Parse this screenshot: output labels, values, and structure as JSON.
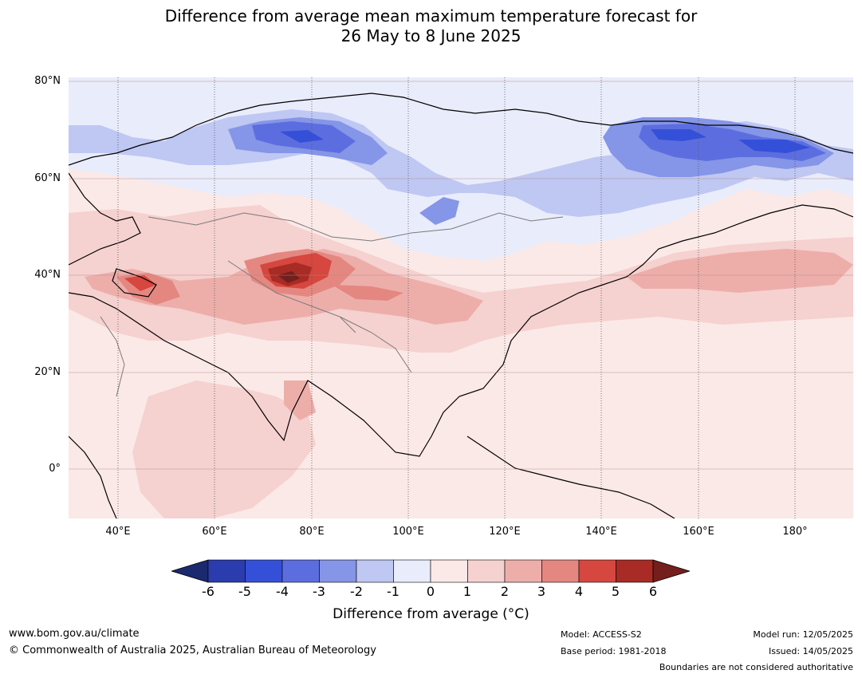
{
  "title": {
    "line1": "Difference from average mean maximum temperature forecast for",
    "line2": "26 May to 8 June 2025"
  },
  "map": {
    "lat_labels": [
      "80°N",
      "60°N",
      "40°N",
      "20°N",
      "0°"
    ],
    "lon_labels": [
      "40°E",
      "60°E",
      "80°E",
      "100°E",
      "120°E",
      "140°E",
      "160°E",
      "180°"
    ],
    "colors": {
      "ocean_land_base": "#fbe9e7",
      "band_1_2": "#f5d1cf",
      "band_2_3": "#edaeaa",
      "band_3_4": "#e48781",
      "band_4_5": "#d6473f",
      "band_5_6": "#a82b25",
      "band_6plus": "#741f1c",
      "band_m1_0": "#e9ecfb",
      "band_m2_m1": "#bfc7f3",
      "band_m3_m2": "#8595e7",
      "band_m4_m3": "#5c6edf",
      "band_m5_m4": "#3550d8"
    }
  },
  "colorbar": {
    "ticks": [
      "-6",
      "-5",
      "-4",
      "-3",
      "-2",
      "-1",
      "0",
      "1",
      "2",
      "3",
      "4",
      "5",
      "6"
    ],
    "colors": [
      "#1b2a6e",
      "#2a3cae",
      "#3550d8",
      "#5c6edf",
      "#8595e7",
      "#bfc7f3",
      "#e9ecfb",
      "#fbe9e7",
      "#f5d1cf",
      "#edaeaa",
      "#e48781",
      "#d6473f",
      "#a82b25",
      "#741f1c"
    ],
    "label": "Difference from average (°C)"
  },
  "footer": {
    "website": "www.bom.gov.au/climate",
    "copyright": "© Commonwealth of Australia 2025, Australian Bureau of Meteorology",
    "model": "Model: ACCESS-S2",
    "base_period": "Base period: 1981-2018",
    "model_run": "Model run: 12/05/2025",
    "issued": "Issued: 14/05/2025",
    "disclaimer": "Boundaries are not considered authoritative"
  }
}
